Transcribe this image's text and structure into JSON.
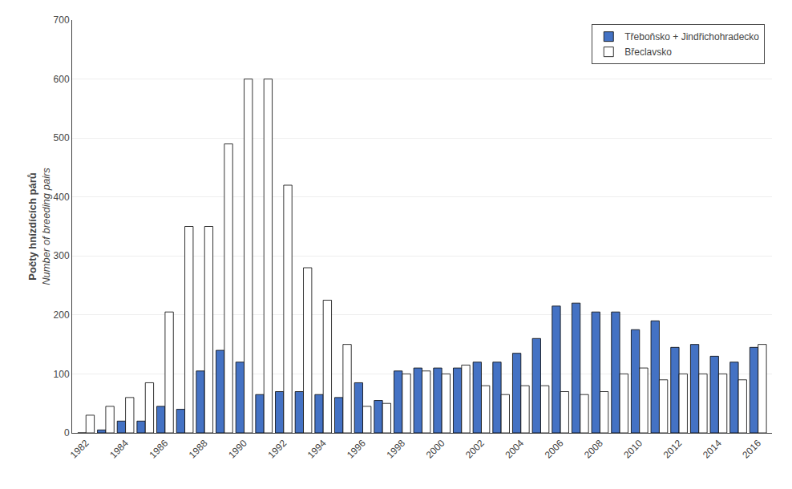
{
  "chart_data": {
    "type": "bar",
    "ylabel": [
      "Počty hnízdících párů",
      "Number of breeding pairs"
    ],
    "categories": [
      "1982",
      null,
      "1984",
      null,
      "1986",
      null,
      "1988",
      null,
      "1990",
      null,
      "1992",
      null,
      "1994",
      null,
      "1996",
      null,
      "1998",
      null,
      "2000",
      null,
      "2002",
      null,
      "2004",
      null,
      "2006",
      null,
      "2008",
      null,
      "2010",
      null,
      "2012",
      null,
      "2014",
      null,
      "2016"
    ],
    "series": [
      {
        "name": "Třeboňsko + Jindřichohradecko",
        "color": "#4472C4",
        "values": [
          0,
          5,
          20,
          20,
          45,
          40,
          105,
          140,
          120,
          65,
          70,
          70,
          65,
          60,
          85,
          55,
          105,
          110,
          110,
          110,
          120,
          120,
          135,
          160,
          215,
          220,
          205,
          205,
          175,
          190,
          145,
          150,
          130,
          120,
          145
        ]
      },
      {
        "name": "Břeclavsko",
        "color": "#FFFFFF",
        "values": [
          30,
          45,
          60,
          85,
          205,
          350,
          350,
          490,
          600,
          600,
          420,
          280,
          225,
          150,
          45,
          50,
          100,
          105,
          100,
          115,
          80,
          65,
          80,
          80,
          70,
          65,
          70,
          100,
          110,
          90,
          100,
          100,
          100,
          90,
          150
        ]
      }
    ],
    "ylim": [
      0,
      700
    ],
    "yticks": [
      0,
      100,
      200,
      300,
      400,
      500,
      600,
      700
    ],
    "grid": true,
    "legend": "upper right"
  }
}
